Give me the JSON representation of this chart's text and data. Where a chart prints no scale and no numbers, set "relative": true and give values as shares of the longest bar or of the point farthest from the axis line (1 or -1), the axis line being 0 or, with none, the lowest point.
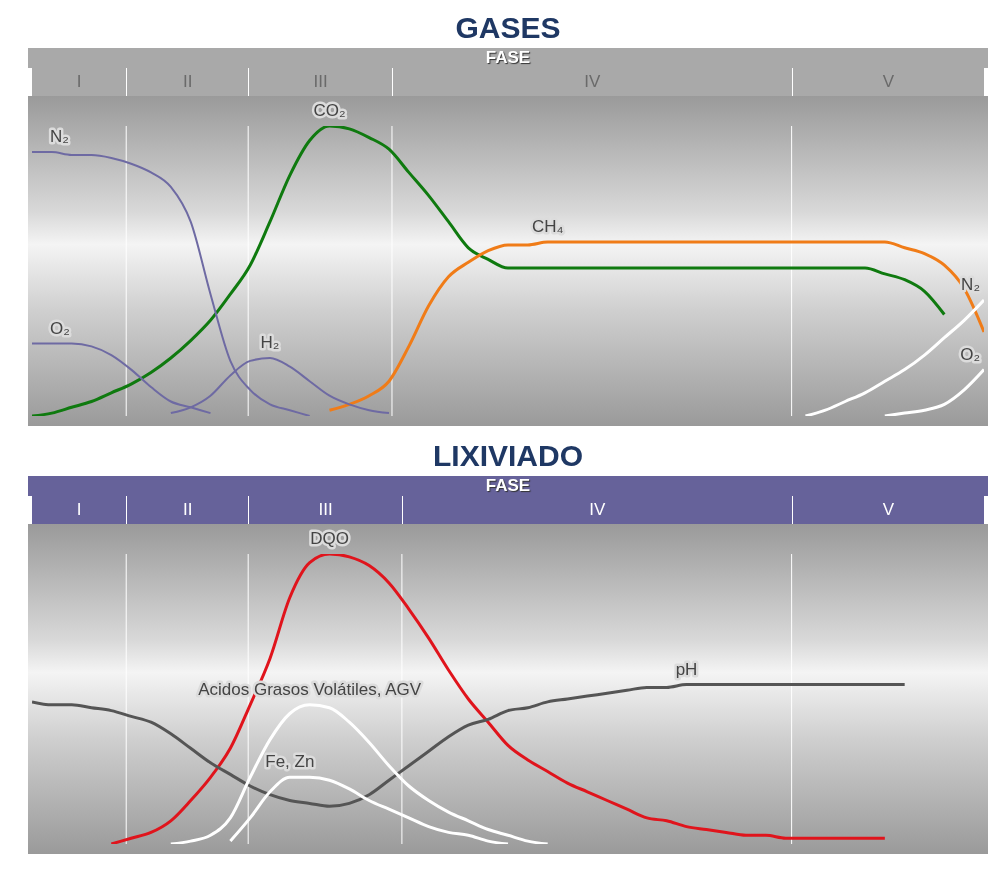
{
  "chart_data": [
    {
      "type": "line",
      "title": "GASES",
      "xlabel": "FASE",
      "relative": true,
      "marker": "none",
      "categories": [
        null,
        null,
        null,
        null,
        null,
        null,
        null,
        null,
        null,
        null,
        null,
        null,
        null,
        null,
        null,
        null,
        null,
        null,
        null,
        null,
        null,
        null,
        null,
        null,
        null,
        null,
        null,
        null,
        null,
        null,
        null,
        null,
        null,
        null,
        null,
        null,
        null,
        null,
        null,
        null,
        null,
        null,
        null,
        null,
        null,
        null,
        null,
        null,
        null
      ],
      "annotations": [
        "I",
        "II",
        "III",
        "IV",
        "V"
      ],
      "series": [
        {
          "name": "CO₂",
          "color": "#0f7a0f",
          "values": [
            0,
            0.01,
            0.03,
            0.05,
            0.08,
            0.11,
            0.15,
            0.2,
            0.26,
            0.33,
            0.42,
            0.52,
            0.67,
            0.83,
            0.95,
            1,
            0.99,
            0.96,
            0.92,
            0.84,
            0.76,
            0.67,
            0.58,
            0.54,
            0.51,
            0.51,
            0.51,
            0.51,
            0.51,
            0.51,
            0.51,
            0.51,
            0.51,
            0.51,
            0.51,
            0.51,
            0.51,
            0.51,
            0.51,
            0.51,
            0.51,
            0.51,
            0.51,
            0.49,
            0.47,
            0.43,
            0.35,
            null,
            null
          ]
        },
        {
          "name": "CH₄",
          "color": "#f07c18",
          "values": [
            null,
            null,
            null,
            null,
            null,
            null,
            null,
            null,
            null,
            null,
            null,
            null,
            null,
            null,
            null,
            0.02,
            0.04,
            0.07,
            0.12,
            0.24,
            0.38,
            0.48,
            0.53,
            0.57,
            0.59,
            0.59,
            0.6,
            0.6,
            0.6,
            0.6,
            0.6,
            0.6,
            0.6,
            0.6,
            0.6,
            0.6,
            0.6,
            0.6,
            0.6,
            0.6,
            0.6,
            0.6,
            0.6,
            0.6,
            0.58,
            0.56,
            0.52,
            0.44,
            0.29
          ]
        },
        {
          "name": "N₂",
          "color": "#6e6aa3",
          "values": [
            0.91,
            0.91,
            0.9,
            0.9,
            0.89,
            0.87,
            0.84,
            0.79,
            0.67,
            0.42,
            0.19,
            0.09,
            0.04,
            0.02,
            0,
            null,
            null,
            null,
            null,
            null,
            null,
            null,
            null,
            null,
            null,
            null,
            null,
            null,
            null,
            null,
            null,
            null,
            null,
            null,
            null,
            null,
            null,
            null,
            null,
            null,
            null,
            null,
            null,
            null,
            null,
            null,
            null,
            null,
            null
          ]
        },
        {
          "name": "O₂",
          "color": "#6e6aa3",
          "values": [
            0.25,
            0.25,
            0.25,
            0.24,
            0.21,
            0.16,
            0.1,
            0.05,
            0.03,
            0.01,
            null,
            null,
            null,
            null,
            null,
            null,
            null,
            null,
            null,
            null,
            null,
            null,
            null,
            null,
            null,
            null,
            null,
            null,
            null,
            null,
            null,
            null,
            null,
            null,
            null,
            null,
            null,
            null,
            null,
            null,
            null,
            null,
            null,
            null,
            null,
            null,
            null,
            null,
            null
          ]
        },
        {
          "name": "H₂",
          "color": "#6e6aa3",
          "values": [
            null,
            null,
            null,
            null,
            null,
            null,
            null,
            0.01,
            0.03,
            0.07,
            0.14,
            0.19,
            0.2,
            0.17,
            0.12,
            0.07,
            0.04,
            0.02,
            0.01,
            null,
            null,
            null,
            null,
            null,
            null,
            null,
            null,
            null,
            null,
            null,
            null,
            null,
            null,
            null,
            null,
            null,
            null,
            null,
            null,
            null,
            null,
            null,
            null,
            null,
            null,
            null,
            null,
            null,
            null
          ]
        },
        {
          "name": "N₂",
          "color": "#ffffff",
          "values": [
            null,
            null,
            null,
            null,
            null,
            null,
            null,
            null,
            null,
            null,
            null,
            null,
            null,
            null,
            null,
            null,
            null,
            null,
            null,
            null,
            null,
            null,
            null,
            null,
            null,
            null,
            null,
            null,
            null,
            null,
            null,
            null,
            null,
            null,
            null,
            null,
            null,
            null,
            null,
            0,
            0.02,
            0.05,
            0.08,
            0.12,
            0.16,
            0.21,
            0.27,
            0.33,
            0.4
          ]
        },
        {
          "name": "O₂",
          "color": "#ffffff",
          "values": [
            null,
            null,
            null,
            null,
            null,
            null,
            null,
            null,
            null,
            null,
            null,
            null,
            null,
            null,
            null,
            null,
            null,
            null,
            null,
            null,
            null,
            null,
            null,
            null,
            null,
            null,
            null,
            null,
            null,
            null,
            null,
            null,
            null,
            null,
            null,
            null,
            null,
            null,
            null,
            null,
            null,
            null,
            null,
            0,
            0.01,
            0.02,
            0.04,
            0.09,
            0.16
          ]
        }
      ]
    },
    {
      "type": "line",
      "title": "LIXIVIADO",
      "xlabel": "FASE",
      "relative": true,
      "marker": "none",
      "categories": [
        null,
        null,
        null,
        null,
        null,
        null,
        null,
        null,
        null,
        null,
        null,
        null,
        null,
        null,
        null,
        null,
        null,
        null,
        null,
        null,
        null,
        null,
        null,
        null,
        null,
        null,
        null,
        null,
        null,
        null,
        null,
        null,
        null,
        null,
        null,
        null,
        null,
        null,
        null,
        null,
        null,
        null,
        null,
        null,
        null,
        null,
        null,
        null,
        null
      ],
      "annotations": [
        "I",
        "II",
        "III",
        "IV",
        "V"
      ],
      "series": [
        {
          "name": "DQO",
          "color": "#e0141c",
          "values": [
            null,
            null,
            null,
            null,
            0,
            0.02,
            0.04,
            0.08,
            0.15,
            0.23,
            0.33,
            0.48,
            0.64,
            0.85,
            0.97,
            1,
            0.99,
            0.96,
            0.9,
            0.81,
            0.71,
            0.6,
            0.5,
            0.42,
            0.34,
            0.29,
            0.25,
            0.21,
            0.18,
            0.15,
            0.12,
            0.09,
            0.08,
            0.06,
            0.05,
            0.04,
            0.03,
            0.03,
            0.02,
            0.02,
            0.02,
            0.02,
            0.02,
            0.02,
            null,
            null,
            null,
            null,
            null
          ]
        },
        {
          "name": "pH",
          "color": "#555555",
          "values": [
            0.49,
            0.48,
            0.48,
            0.47,
            0.46,
            0.44,
            0.42,
            0.38,
            0.33,
            0.28,
            0.24,
            0.2,
            0.17,
            0.15,
            0.14,
            0.13,
            0.14,
            0.17,
            0.22,
            0.27,
            0.32,
            0.37,
            0.41,
            0.43,
            0.46,
            0.47,
            0.49,
            0.5,
            0.51,
            0.52,
            0.53,
            0.54,
            0.54,
            0.55,
            0.55,
            0.55,
            0.55,
            0.55,
            0.55,
            0.55,
            0.55,
            0.55,
            0.55,
            0.55,
            0.55,
            null,
            null,
            null,
            null
          ]
        },
        {
          "name": "Acidos Grasos Volátiles, AGV",
          "color": "#ffffff",
          "values": [
            null,
            null,
            null,
            null,
            null,
            null,
            null,
            0,
            0.01,
            0.03,
            0.09,
            0.23,
            0.36,
            0.45,
            0.48,
            0.47,
            0.42,
            0.35,
            0.27,
            0.2,
            0.15,
            0.11,
            0.08,
            0.05,
            0.03,
            0.01,
            0,
            null,
            null,
            null,
            null,
            null,
            null,
            null,
            null,
            null,
            null,
            null,
            null,
            null,
            null,
            null,
            null,
            null,
            null,
            null,
            null,
            null,
            null
          ]
        },
        {
          "name": "Fe, Zn",
          "color": "#ffffff",
          "values": [
            null,
            null,
            null,
            null,
            null,
            null,
            null,
            null,
            null,
            null,
            0.01,
            0.09,
            0.18,
            0.23,
            0.23,
            0.22,
            0.19,
            0.15,
            0.12,
            0.09,
            0.06,
            0.04,
            0.03,
            0.01,
            0,
            null,
            null,
            null,
            null,
            null,
            null,
            null,
            null,
            null,
            null,
            null,
            null,
            null,
            null,
            null,
            null,
            null,
            null,
            null,
            null,
            null,
            null,
            null,
            null
          ]
        }
      ]
    }
  ]
}
